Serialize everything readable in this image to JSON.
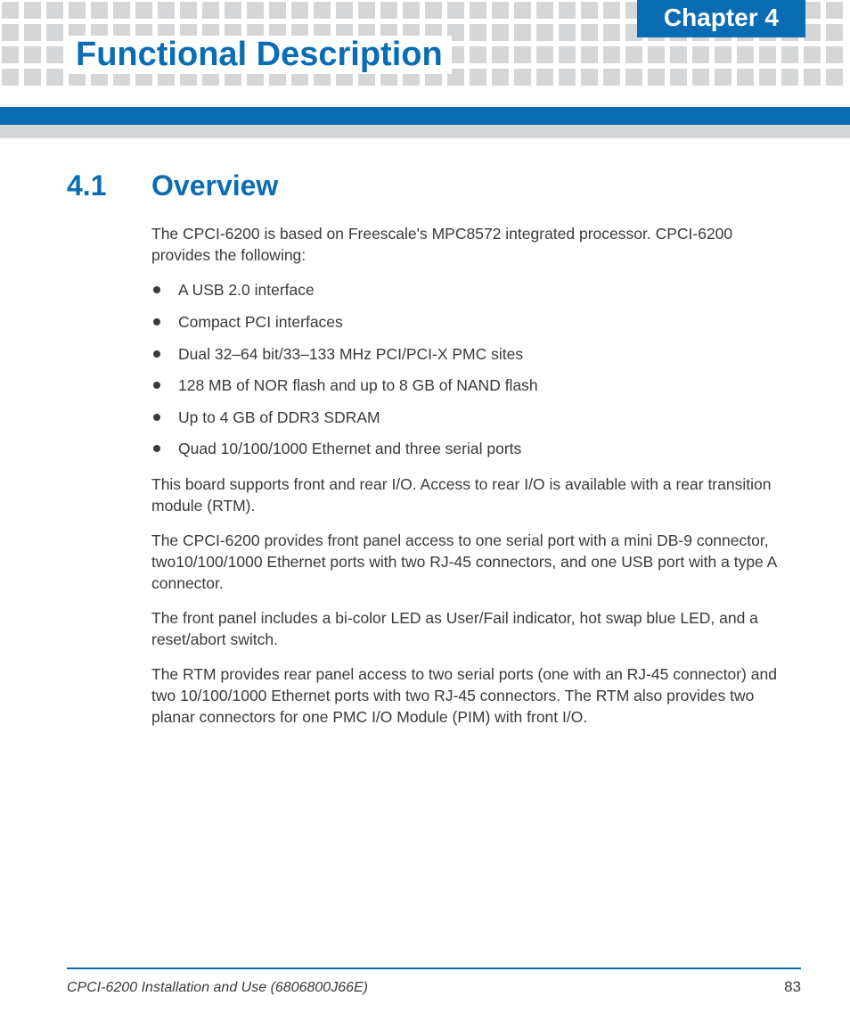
{
  "header": {
    "chapter_label": "Chapter 4",
    "chapter_title": "Functional Description",
    "square_color": "#d5d6d8",
    "accent_color": "#0a6db4",
    "squares_per_row": 38,
    "square_rows": 4
  },
  "section": {
    "number": "4.1",
    "title": "Overview"
  },
  "content": {
    "intro": "The CPCI-6200 is based on Freescale's MPC8572 integrated processor. CPCI-6200 provides the following:",
    "bullets": [
      "A USB 2.0 interface",
      "Compact PCI interfaces",
      "Dual 32–64 bit/33–133 MHz PCI/PCI-X PMC sites",
      "128 MB of NOR flash and up to 8 GB of NAND flash",
      "Up to 4 GB of DDR3 SDRAM",
      "Quad 10/100/1000 Ethernet and three serial ports"
    ],
    "para1": "This board supports front and rear I/O. Access to rear I/O is available with a rear transition module (RTM).",
    "para2": "The CPCI-6200 provides front panel access to one serial port with a mini DB-9 connector, two10/100/1000 Ethernet ports with two RJ-45 connectors, and one USB port with a type A connector.",
    "para3": "The front panel includes a bi-color LED as User/Fail indicator, hot swap blue LED, and a reset/abort switch.",
    "para4": "The RTM provides rear panel access to two serial ports (one with an RJ-45 connector) and two 10/100/1000 Ethernet ports with two RJ-45 connectors. The RTM also provides two planar connectors for one PMC I/O Module (PIM) with front I/O."
  },
  "footer": {
    "doc_title": "CPCI-6200 Installation and Use (6806800J66E)",
    "page_number": "83"
  },
  "colors": {
    "text": "#3a3a3a",
    "accent": "#0a6db4",
    "square": "#d5d6d8",
    "background": "#ffffff"
  },
  "typography": {
    "chapter_label_size": 28,
    "chapter_title_size": 38,
    "section_heading_size": 32,
    "body_size": 17.5,
    "footer_size": 16
  }
}
